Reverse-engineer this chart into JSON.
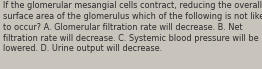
{
  "text": "If the glomerular mesangial cells contract, reducing the overall\nsurface area of the glomerulus which of the following is not likely\nto occur? A. Glomerular filtration rate will decrease. B. Net\nfiltration rate will decrease. C. Systemic blood pressure will be\nlowered. D. Urine output will decrease.",
  "background_color": "#c8c3bb",
  "text_color": "#2a2a2a",
  "font_size": 5.9,
  "fig_width": 2.62,
  "fig_height": 0.69,
  "dpi": 100
}
